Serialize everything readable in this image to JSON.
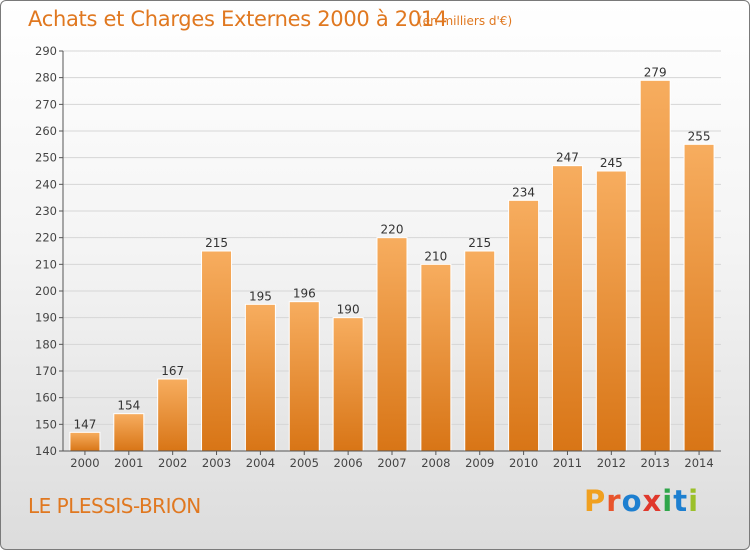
{
  "header": {
    "title": "Achats et Charges Externes 2000 à 2014",
    "subtitle": "(en milliers d'€)"
  },
  "footer": {
    "town": "LE PLESSIS-BRION",
    "logo": "Proxiti"
  },
  "colors": {
    "accent": "#e07820",
    "bar_light": "#f6a85a",
    "bar_dark": "#d47218",
    "grid": "#d9d9d9",
    "axis": "#555555"
  },
  "chart_data": {
    "type": "bar",
    "title": "Achats et Charges Externes 2000 à 2014",
    "subtitle": "(en milliers d'€)",
    "categories": [
      "2000",
      "2001",
      "2002",
      "2003",
      "2004",
      "2005",
      "2006",
      "2007",
      "2008",
      "2009",
      "2010",
      "2011",
      "2012",
      "2013",
      "2014"
    ],
    "values": [
      147,
      154,
      167,
      215,
      195,
      196,
      190,
      220,
      210,
      215,
      234,
      247,
      245,
      279,
      255
    ],
    "ylim": [
      140,
      290
    ],
    "yticks": [
      140,
      150,
      160,
      170,
      180,
      190,
      200,
      210,
      220,
      230,
      240,
      250,
      260,
      270,
      280,
      290
    ],
    "grid": true,
    "data_labels": true
  }
}
